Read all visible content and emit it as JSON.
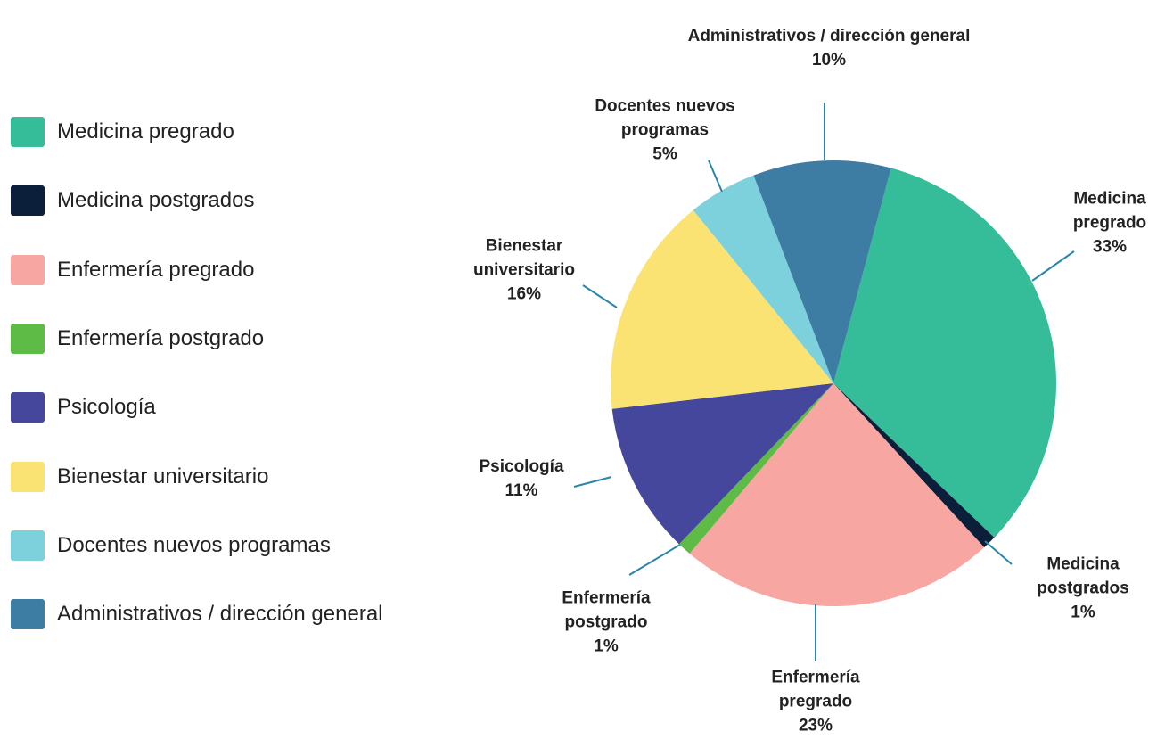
{
  "chart_data": {
    "type": "pie",
    "categories": [
      "Medicina pregrado",
      "Medicina postgrados",
      "Enfermería pregrado",
      "Enfermería postgrado",
      "Psicología",
      "Bienestar universitario",
      "Docentes nuevos programas",
      "Administrativos / dirección general"
    ],
    "values": [
      33,
      1,
      23,
      1,
      11,
      16,
      5,
      10
    ],
    "value_labels": [
      "33%",
      "1%",
      "23%",
      "1%",
      "11%",
      "16%",
      "5%",
      "10%"
    ],
    "colors": [
      "#34bd98",
      "#0b1f3a",
      "#f7a6a2",
      "#5dbb46",
      "#44479c",
      "#fae373",
      "#7dd1dc",
      "#3d7ca3"
    ],
    "legend": "left"
  }
}
